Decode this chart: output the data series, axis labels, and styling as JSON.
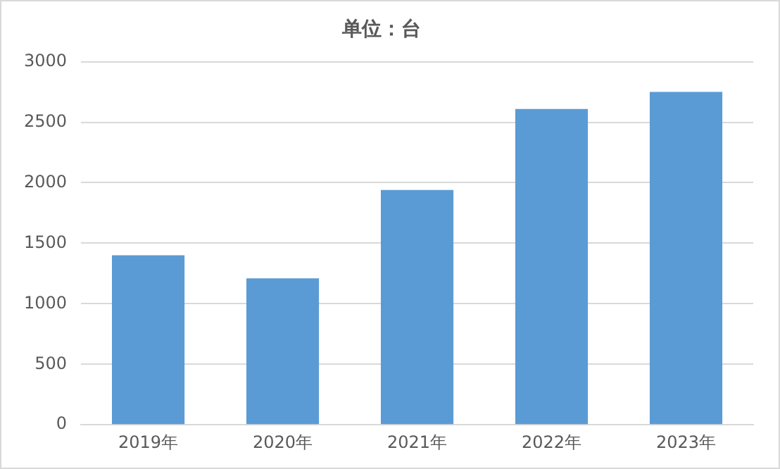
{
  "chart_data": {
    "type": "bar",
    "title": "单位：台",
    "categories": [
      "2019年",
      "2020年",
      "2021年",
      "2022年",
      "2023年"
    ],
    "values": [
      1400,
      1210,
      1940,
      2610,
      2750
    ],
    "color": "#5b9bd5",
    "ylim": [
      0,
      3000
    ],
    "yticks": [
      0,
      500,
      1000,
      1500,
      2000,
      2500,
      3000
    ],
    "grid": "y",
    "legend": false
  }
}
